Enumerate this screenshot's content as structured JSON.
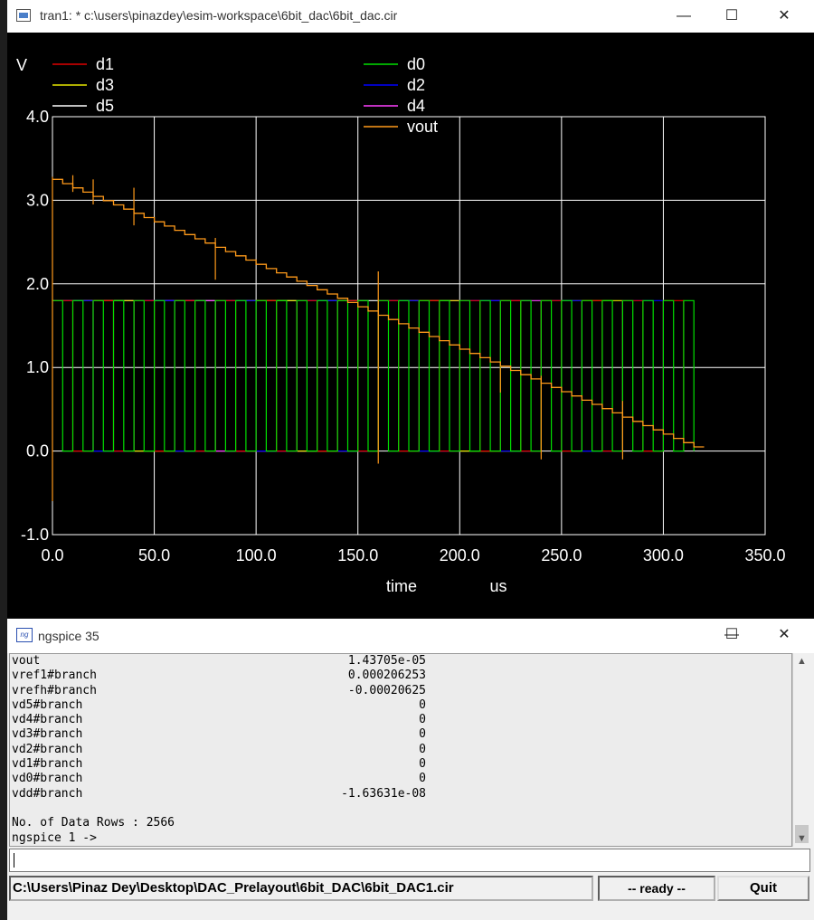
{
  "plot_window": {
    "title": "tran1: * c:\\users\\pinazdey\\esim-workspace\\6bit_dac\\6bit_dac.cir",
    "controls": {
      "minimize": "—",
      "maximize": "☐",
      "close": "✕"
    }
  },
  "chart_data": {
    "type": "line",
    "ylabel": "V",
    "xlabel": "time",
    "xunit": "us",
    "xlim": [
      0,
      350
    ],
    "ylim": [
      -1,
      4
    ],
    "x_ticks": [
      "0.0",
      "50.0",
      "100.0",
      "150.0",
      "200.0",
      "250.0",
      "300.0",
      "350.0"
    ],
    "y_ticks": [
      "4.0",
      "3.0",
      "2.0",
      "1.0",
      "0.0",
      "-1.0"
    ],
    "grid": true,
    "legend": [
      {
        "name": "d1",
        "color": "#e00000"
      },
      {
        "name": "d0",
        "color": "#00e000"
      },
      {
        "name": "d3",
        "color": "#e8e800"
      },
      {
        "name": "d2",
        "color": "#0000ff"
      },
      {
        "name": "d5",
        "color": "#ffffff"
      },
      {
        "name": "d4",
        "color": "#ff40ff"
      },
      {
        "name": "vout",
        "color": "#ff9a1a"
      }
    ],
    "digital_high": 1.8,
    "digital_period_us": 5,
    "digital_end_us": 315,
    "series": [
      {
        "name": "d0",
        "transition_step_us": 5
      },
      {
        "name": "d1",
        "transition_step_us": 10
      },
      {
        "name": "d2",
        "transition_step_us": 20
      },
      {
        "name": "d3",
        "transition_step_us": 40
      },
      {
        "name": "d4",
        "transition_step_us": 80
      },
      {
        "name": "d5",
        "transition_step_us": 160
      },
      {
        "name": "vout",
        "start": 3.25,
        "end": 0.05,
        "step_us": 5,
        "end_us": 320
      }
    ]
  },
  "ngspice": {
    "title": "ngspice 35",
    "icon": "ng",
    "controls": {
      "minimize": "—",
      "maximize": "☐",
      "close": "✕"
    },
    "rows": [
      {
        "name": "vout",
        "value": "1.43705e-05"
      },
      {
        "name": "vref1#branch",
        "value": "0.000206253"
      },
      {
        "name": "vrefh#branch",
        "value": "-0.00020625"
      },
      {
        "name": "vd5#branch",
        "value": "0"
      },
      {
        "name": "vd4#branch",
        "value": "0"
      },
      {
        "name": "vd3#branch",
        "value": "0"
      },
      {
        "name": "vd2#branch",
        "value": "0"
      },
      {
        "name": "vd1#branch",
        "value": "0"
      },
      {
        "name": "vd0#branch",
        "value": "0"
      },
      {
        "name": "vdd#branch",
        "value": "-1.63631e-08"
      }
    ],
    "data_rows_line": "No. of Data Rows : 2566",
    "prompt": "ngspice 1 ->",
    "status_path": "C:\\Users\\Pinaz Dey\\Desktop\\DAC_Prelayout\\6bit_DAC\\6bit_DAC1.cir",
    "status_ready": "-- ready --",
    "quit_label": "Quit"
  }
}
